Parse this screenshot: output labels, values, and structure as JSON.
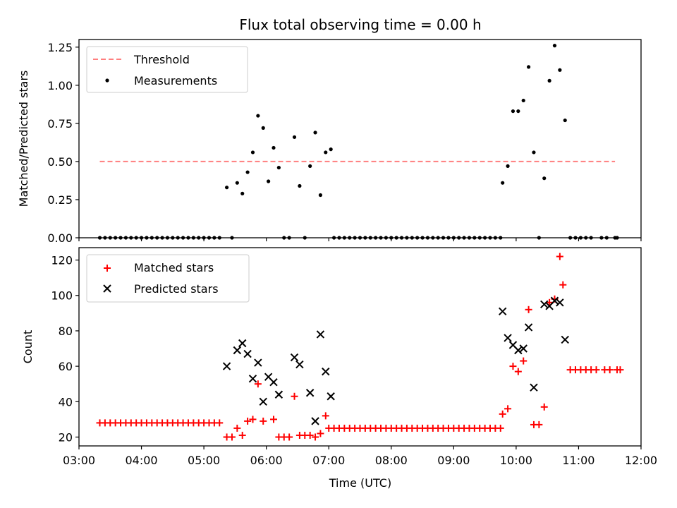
{
  "chart_data": [
    {
      "type": "scatter",
      "title": "Flux total observing time = 0.00 h",
      "xlabel": "",
      "ylabel": "Matched/Predicted stars",
      "xlim": [
        "03:00",
        "12:00"
      ],
      "ylim": [
        0,
        1.3
      ],
      "yticks": [
        "0.00",
        "0.25",
        "0.50",
        "0.75",
        "1.00",
        "1.25"
      ],
      "grid": false,
      "legend_position": "top-left",
      "threshold": {
        "name": "Threshold",
        "value": 0.5,
        "x_start": "03:20",
        "x_end": "11:35",
        "color": "#ff7f7f",
        "style": "dashed"
      },
      "series": [
        {
          "name": "Measurements",
          "color": "#000000",
          "marker": "dot",
          "points": [
            [
              "03:20",
              0
            ],
            [
              "03:25",
              0
            ],
            [
              "03:30",
              0
            ],
            [
              "03:35",
              0
            ],
            [
              "03:40",
              0
            ],
            [
              "03:45",
              0
            ],
            [
              "03:50",
              0
            ],
            [
              "03:55",
              0
            ],
            [
              "04:00",
              0
            ],
            [
              "04:05",
              0
            ],
            [
              "04:10",
              0
            ],
            [
              "04:15",
              0
            ],
            [
              "04:20",
              0
            ],
            [
              "04:25",
              0
            ],
            [
              "04:30",
              0
            ],
            [
              "04:35",
              0
            ],
            [
              "04:40",
              0
            ],
            [
              "04:45",
              0
            ],
            [
              "04:50",
              0
            ],
            [
              "04:55",
              0
            ],
            [
              "05:00",
              0
            ],
            [
              "05:05",
              0
            ],
            [
              "05:10",
              0
            ],
            [
              "05:15",
              0
            ],
            [
              "05:22",
              0.33
            ],
            [
              "05:27",
              0
            ],
            [
              "05:32",
              0.36
            ],
            [
              "05:37",
              0.29
            ],
            [
              "05:42",
              0.43
            ],
            [
              "05:47",
              0.56
            ],
            [
              "05:52",
              0.8
            ],
            [
              "05:57",
              0.72
            ],
            [
              "06:02",
              0.37
            ],
            [
              "06:07",
              0.59
            ],
            [
              "06:12",
              0.46
            ],
            [
              "06:17",
              0
            ],
            [
              "06:22",
              0
            ],
            [
              "06:27",
              0.66
            ],
            [
              "06:32",
              0.34
            ],
            [
              "06:37",
              0
            ],
            [
              "06:42",
              0.47
            ],
            [
              "06:47",
              0.69
            ],
            [
              "06:52",
              0.28
            ],
            [
              "06:57",
              0.56
            ],
            [
              "07:02",
              0.58
            ],
            [
              "07:05",
              0
            ],
            [
              "07:10",
              0
            ],
            [
              "07:15",
              0
            ],
            [
              "07:20",
              0
            ],
            [
              "07:25",
              0
            ],
            [
              "07:30",
              0
            ],
            [
              "07:35",
              0
            ],
            [
              "07:40",
              0
            ],
            [
              "07:45",
              0
            ],
            [
              "07:50",
              0
            ],
            [
              "07:55",
              0
            ],
            [
              "08:00",
              0
            ],
            [
              "08:05",
              0
            ],
            [
              "08:10",
              0
            ],
            [
              "08:15",
              0
            ],
            [
              "08:20",
              0
            ],
            [
              "08:25",
              0
            ],
            [
              "08:30",
              0
            ],
            [
              "08:35",
              0
            ],
            [
              "08:40",
              0
            ],
            [
              "08:45",
              0
            ],
            [
              "08:50",
              0
            ],
            [
              "08:55",
              0
            ],
            [
              "09:00",
              0
            ],
            [
              "09:05",
              0
            ],
            [
              "09:10",
              0
            ],
            [
              "09:15",
              0
            ],
            [
              "09:20",
              0
            ],
            [
              "09:25",
              0
            ],
            [
              "09:30",
              0
            ],
            [
              "09:35",
              0
            ],
            [
              "09:40",
              0
            ],
            [
              "09:45",
              0
            ],
            [
              "09:47",
              0.36
            ],
            [
              "09:52",
              0.47
            ],
            [
              "09:57",
              0.83
            ],
            [
              "10:02",
              0.83
            ],
            [
              "10:07",
              0.9
            ],
            [
              "10:12",
              1.12
            ],
            [
              "10:17",
              0.56
            ],
            [
              "10:22",
              0
            ],
            [
              "10:27",
              0.39
            ],
            [
              "10:32",
              1.03
            ],
            [
              "10:37",
              1.26
            ],
            [
              "10:42",
              1.1
            ],
            [
              "10:47",
              0.77
            ],
            [
              "10:52",
              0
            ],
            [
              "10:57",
              0
            ],
            [
              "11:02",
              0
            ],
            [
              "11:07",
              0
            ],
            [
              "11:12",
              0
            ],
            [
              "11:22",
              0
            ],
            [
              "11:27",
              0
            ],
            [
              "11:35",
              0
            ],
            [
              "11:37",
              0
            ]
          ]
        }
      ]
    },
    {
      "type": "scatter",
      "title": "",
      "xlabel": "Time (UTC)",
      "ylabel": "Count",
      "xlim": [
        "03:00",
        "12:00"
      ],
      "xticks": [
        "03:00",
        "04:00",
        "05:00",
        "06:00",
        "07:00",
        "08:00",
        "09:00",
        "10:00",
        "11:00",
        "12:00"
      ],
      "ylim": [
        15,
        127
      ],
      "yticks": [
        "20",
        "40",
        "60",
        "80",
        "100",
        "120"
      ],
      "grid": false,
      "legend_position": "top-left",
      "series": [
        {
          "name": "Matched stars",
          "color": "#ff0000",
          "marker": "plus",
          "points": [
            [
              "03:20",
              28
            ],
            [
              "03:25",
              28
            ],
            [
              "03:30",
              28
            ],
            [
              "03:35",
              28
            ],
            [
              "03:40",
              28
            ],
            [
              "03:45",
              28
            ],
            [
              "03:50",
              28
            ],
            [
              "03:55",
              28
            ],
            [
              "04:00",
              28
            ],
            [
              "04:05",
              28
            ],
            [
              "04:10",
              28
            ],
            [
              "04:15",
              28
            ],
            [
              "04:20",
              28
            ],
            [
              "04:25",
              28
            ],
            [
              "04:30",
              28
            ],
            [
              "04:35",
              28
            ],
            [
              "04:40",
              28
            ],
            [
              "04:45",
              28
            ],
            [
              "04:50",
              28
            ],
            [
              "04:55",
              28
            ],
            [
              "05:00",
              28
            ],
            [
              "05:05",
              28
            ],
            [
              "05:10",
              28
            ],
            [
              "05:15",
              28
            ],
            [
              "05:22",
              20
            ],
            [
              "05:27",
              20
            ],
            [
              "05:32",
              25
            ],
            [
              "05:37",
              21
            ],
            [
              "05:42",
              29
            ],
            [
              "05:47",
              30
            ],
            [
              "05:52",
              50
            ],
            [
              "05:57",
              29
            ],
            [
              "06:07",
              30
            ],
            [
              "06:12",
              20
            ],
            [
              "06:17",
              20
            ],
            [
              "06:22",
              20
            ],
            [
              "06:27",
              43
            ],
            [
              "06:32",
              21
            ],
            [
              "06:37",
              21
            ],
            [
              "06:42",
              21
            ],
            [
              "06:47",
              20
            ],
            [
              "06:52",
              22
            ],
            [
              "06:57",
              32
            ],
            [
              "07:00",
              25
            ],
            [
              "07:05",
              25
            ],
            [
              "07:10",
              25
            ],
            [
              "07:15",
              25
            ],
            [
              "07:20",
              25
            ],
            [
              "07:25",
              25
            ],
            [
              "07:30",
              25
            ],
            [
              "07:35",
              25
            ],
            [
              "07:40",
              25
            ],
            [
              "07:45",
              25
            ],
            [
              "07:50",
              25
            ],
            [
              "07:55",
              25
            ],
            [
              "08:00",
              25
            ],
            [
              "08:05",
              25
            ],
            [
              "08:10",
              25
            ],
            [
              "08:15",
              25
            ],
            [
              "08:20",
              25
            ],
            [
              "08:25",
              25
            ],
            [
              "08:30",
              25
            ],
            [
              "08:35",
              25
            ],
            [
              "08:40",
              25
            ],
            [
              "08:45",
              25
            ],
            [
              "08:50",
              25
            ],
            [
              "08:55",
              25
            ],
            [
              "09:00",
              25
            ],
            [
              "09:05",
              25
            ],
            [
              "09:10",
              25
            ],
            [
              "09:15",
              25
            ],
            [
              "09:20",
              25
            ],
            [
              "09:25",
              25
            ],
            [
              "09:30",
              25
            ],
            [
              "09:35",
              25
            ],
            [
              "09:40",
              25
            ],
            [
              "09:45",
              25
            ],
            [
              "09:47",
              33
            ],
            [
              "09:52",
              36
            ],
            [
              "09:57",
              60
            ],
            [
              "10:02",
              57
            ],
            [
              "10:07",
              63
            ],
            [
              "10:12",
              92
            ],
            [
              "10:17",
              27
            ],
            [
              "10:22",
              27
            ],
            [
              "10:27",
              37
            ],
            [
              "10:32",
              96
            ],
            [
              "10:37",
              98
            ],
            [
              "10:42",
              122
            ],
            [
              "10:45",
              106
            ],
            [
              "10:52",
              58
            ],
            [
              "10:57",
              58
            ],
            [
              "11:02",
              58
            ],
            [
              "11:07",
              58
            ],
            [
              "11:12",
              58
            ],
            [
              "11:17",
              58
            ],
            [
              "11:25",
              58
            ],
            [
              "11:30",
              58
            ],
            [
              "11:37",
              58
            ],
            [
              "11:40",
              58
            ]
          ]
        },
        {
          "name": "Predicted stars",
          "color": "#000000",
          "marker": "x",
          "points": [
            [
              "05:22",
              60
            ],
            [
              "05:32",
              69
            ],
            [
              "05:37",
              73
            ],
            [
              "05:42",
              67
            ],
            [
              "05:47",
              53
            ],
            [
              "05:52",
              62
            ],
            [
              "05:57",
              40
            ],
            [
              "06:02",
              54
            ],
            [
              "06:07",
              51
            ],
            [
              "06:12",
              44
            ],
            [
              "06:27",
              65
            ],
            [
              "06:32",
              61
            ],
            [
              "06:42",
              45
            ],
            [
              "06:47",
              29
            ],
            [
              "06:52",
              78
            ],
            [
              "06:57",
              57
            ],
            [
              "07:02",
              43
            ],
            [
              "09:47",
              91
            ],
            [
              "09:52",
              76
            ],
            [
              "09:57",
              72
            ],
            [
              "10:02",
              69
            ],
            [
              "10:07",
              70
            ],
            [
              "10:12",
              82
            ],
            [
              "10:17",
              48
            ],
            [
              "10:27",
              95
            ],
            [
              "10:32",
              94
            ],
            [
              "10:37",
              97
            ],
            [
              "10:42",
              96
            ],
            [
              "10:47",
              75
            ]
          ]
        }
      ]
    }
  ]
}
